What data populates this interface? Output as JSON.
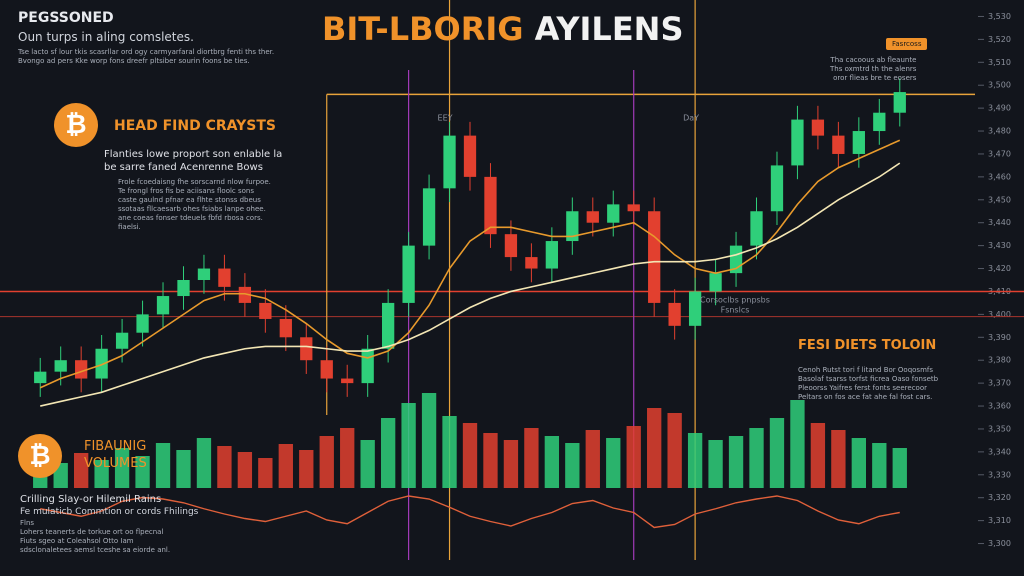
{
  "header": {
    "kicker": "PEGSSONED",
    "subtitle": "Oun turps in aling comsletes.",
    "blurb": [
      "Tse lacto sf lour tkis scasrllar ord ogy carmyarfaral diortbrg fenti ths ther.",
      "Bvongo ad pers Kke worp fons dreefr pltsiber sourin foons be ties."
    ],
    "title_a": "BIT-LBORIG",
    "title_b": "AYILENS",
    "button": "Fasrcoss",
    "caption": [
      "Tha cacoous ab fleaunte",
      "Ths oxmtrd th the alenrs",
      "oror flieas bre te eosers"
    ]
  },
  "panels": {
    "head": {
      "icon": "₿",
      "title": "HEAD FIND CRAYSTS",
      "lead": [
        "Flanties lowe proport son enlable la",
        "be sarre faned Acenrenne Bows"
      ],
      "body": [
        "Frole fcoedaisng fhe sorscarnd nlow furpoe.",
        "Te frongl fros fis be aciisans floolc sons",
        "caste gaulnd pfnar ea flhte stonss dbeus",
        "ssotaas fllcaesarb ohes fsiabs lanpe ohee.",
        "ane coeas fonser tdeuels fbfd rbosa cors.",
        "fiaelsi."
      ]
    },
    "tesi": {
      "title": "FESI DIETS TOLOIN",
      "body": [
        "Cenoh Rutst tori f litand Bor Ooqosmfs",
        "Basolaf tsarss torfst ficrea Oaso fonsetb",
        "Pleoorss Yaifres ferst fonts seerecoor",
        "Peltars on fos ace fat ahe fal fost cars."
      ]
    },
    "vol": {
      "icon": "₿",
      "title": [
        "FIBAUNIG",
        "VOLUMES"
      ],
      "lead": "Crilling Slay-or Hilemil Rains",
      "sub": "Fe mulaticb Commtion or cords Fhilings",
      "body": [
        "Flns",
        "Lohers teanerts de torkue ort oo flpecnal",
        "Fiuts sgeo at Coleahsol Otto Iam",
        "sdsclonaletees aemsl tceshe sa eiorde anl."
      ]
    }
  },
  "chart_data": {
    "type": "candlestick",
    "up_color": "#2fcf7a",
    "down_color": "#e2402f",
    "open": [
      3370,
      3375,
      3380,
      3372,
      3385,
      3392,
      3400,
      3408,
      3415,
      3420,
      3412,
      3405,
      3398,
      3390,
      3380,
      3372,
      3370,
      3385,
      3405,
      3430,
      3455,
      3478,
      3460,
      3435,
      3425,
      3420,
      3432,
      3445,
      3440,
      3448,
      3445,
      3405,
      3395,
      3410,
      3418,
      3430,
      3445,
      3465,
      3485,
      3478,
      3470,
      3480,
      3488
    ],
    "high": [
      3381,
      3386,
      3386,
      3391,
      3398,
      3406,
      3414,
      3421,
      3426,
      3426,
      3418,
      3411,
      3404,
      3396,
      3386,
      3378,
      3391,
      3411,
      3436,
      3461,
      3484,
      3484,
      3466,
      3441,
      3431,
      3438,
      3451,
      3451,
      3454,
      3454,
      3451,
      3411,
      3416,
      3424,
      3436,
      3451,
      3471,
      3491,
      3491,
      3484,
      3486,
      3494,
      3503
    ],
    "low": [
      3364,
      3369,
      3366,
      3366,
      3379,
      3386,
      3394,
      3402,
      3409,
      3406,
      3399,
      3392,
      3384,
      3374,
      3366,
      3364,
      3364,
      3379,
      3399,
      3424,
      3449,
      3454,
      3429,
      3419,
      3414,
      3414,
      3426,
      3434,
      3434,
      3439,
      3399,
      3389,
      3389,
      3404,
      3412,
      3424,
      3439,
      3459,
      3472,
      3464,
      3464,
      3474,
      3482
    ],
    "close": [
      3375,
      3380,
      3372,
      3385,
      3392,
      3400,
      3408,
      3415,
      3420,
      3412,
      3405,
      3398,
      3390,
      3380,
      3372,
      3370,
      3385,
      3405,
      3430,
      3455,
      3478,
      3460,
      3435,
      3425,
      3420,
      3432,
      3445,
      3440,
      3448,
      3445,
      3405,
      3395,
      3410,
      3418,
      3430,
      3445,
      3465,
      3485,
      3478,
      3470,
      3480,
      3488,
      3497
    ],
    "overlays": [
      {
        "color": "#e89a2c",
        "values": [
          3368,
          3372,
          3375,
          3378,
          3382,
          3388,
          3394,
          3400,
          3406,
          3409,
          3409,
          3407,
          3402,
          3396,
          3389,
          3383,
          3381,
          3384,
          3392,
          3404,
          3420,
          3432,
          3438,
          3438,
          3436,
          3434,
          3434,
          3436,
          3438,
          3440,
          3434,
          3426,
          3420,
          3418,
          3420,
          3426,
          3436,
          3448,
          3458,
          3464,
          3468,
          3472,
          3476
        ]
      },
      {
        "color": "#f3e6b4",
        "values": [
          3360,
          3362,
          3364,
          3366,
          3369,
          3372,
          3375,
          3378,
          3381,
          3383,
          3385,
          3386,
          3386,
          3386,
          3385,
          3384,
          3384,
          3386,
          3389,
          3393,
          3398,
          3403,
          3407,
          3410,
          3412,
          3414,
          3416,
          3418,
          3420,
          3422,
          3423,
          3423,
          3423,
          3424,
          3426,
          3429,
          3433,
          3438,
          3444,
          3450,
          3455,
          3460,
          3466
        ]
      }
    ],
    "ylim": [
      3295,
      3535
    ],
    "yticks": [
      {
        "value": 3530,
        "label": "3,530"
      },
      {
        "value": 3520,
        "label": "3,520"
      },
      {
        "value": 3510,
        "label": "3,510"
      },
      {
        "value": 3500,
        "label": "3,500"
      },
      {
        "value": 3490,
        "label": "3,490"
      },
      {
        "value": 3480,
        "label": "3,480"
      },
      {
        "value": 3470,
        "label": "3,470"
      },
      {
        "value": 3460,
        "label": "3,460"
      },
      {
        "value": 3450,
        "label": "3,450"
      },
      {
        "value": 3440,
        "label": "3,440"
      },
      {
        "value": 3430,
        "label": "3,430"
      },
      {
        "value": 3420,
        "label": "3,420"
      },
      {
        "value": 3410,
        "label": "3,410"
      },
      {
        "value": 3400,
        "label": "3,400"
      },
      {
        "value": 3390,
        "label": "3,390"
      },
      {
        "value": 3380,
        "label": "3,380"
      },
      {
        "value": 3370,
        "label": "3,370"
      },
      {
        "value": 3360,
        "label": "3,360"
      },
      {
        "value": 3350,
        "label": "3,350"
      },
      {
        "value": 3340,
        "label": "3,340"
      },
      {
        "value": 3330,
        "label": "3,330"
      },
      {
        "value": 3320,
        "label": "3,320"
      },
      {
        "value": 3310,
        "label": "3,310"
      },
      {
        "value": 3300,
        "label": "3,300"
      }
    ],
    "levels": [
      {
        "value": 3496,
        "color": "#e8a33a"
      },
      {
        "value": 3410,
        "color": "#e2402f"
      },
      {
        "value": 3399,
        "color": "#a8342c"
      }
    ],
    "markers": [
      {
        "index": 14,
        "color": "#e8a33a"
      },
      {
        "index": 18,
        "color": "#a23ab8"
      },
      {
        "index": 20,
        "color": "#e8a33a",
        "label": "EEY"
      },
      {
        "index": 29,
        "color": "#a23ab8"
      },
      {
        "index": 32,
        "color": "#e8a33a",
        "label": "DaY"
      }
    ],
    "annotation": [
      "Corsoclbs pnpsbs",
      "Fsnslcs"
    ],
    "volume": {
      "ylim": [
        0,
        100
      ],
      "values": [
        30,
        25,
        35,
        28,
        40,
        32,
        45,
        38,
        50,
        42,
        36,
        30,
        44,
        38,
        52,
        60,
        48,
        70,
        85,
        95,
        72,
        65,
        55,
        48,
        60,
        52,
        45,
        58,
        50,
        62,
        80,
        75,
        55,
        48,
        52,
        60,
        70,
        88,
        65,
        58,
        50,
        45,
        40
      ]
    },
    "oscillator": {
      "ylim": [
        -40,
        40
      ],
      "color": "#e0603a",
      "values": [
        -5,
        -10,
        -15,
        -8,
        5,
        10,
        8,
        3,
        -5,
        -12,
        -18,
        -22,
        -15,
        -8,
        -20,
        -25,
        -10,
        5,
        12,
        8,
        -3,
        -15,
        -22,
        -28,
        -18,
        -10,
        2,
        6,
        -4,
        -10,
        -30,
        -26,
        -12,
        -5,
        3,
        8,
        12,
        6,
        -8,
        -20,
        -25,
        -15,
        -10
      ]
    }
  }
}
